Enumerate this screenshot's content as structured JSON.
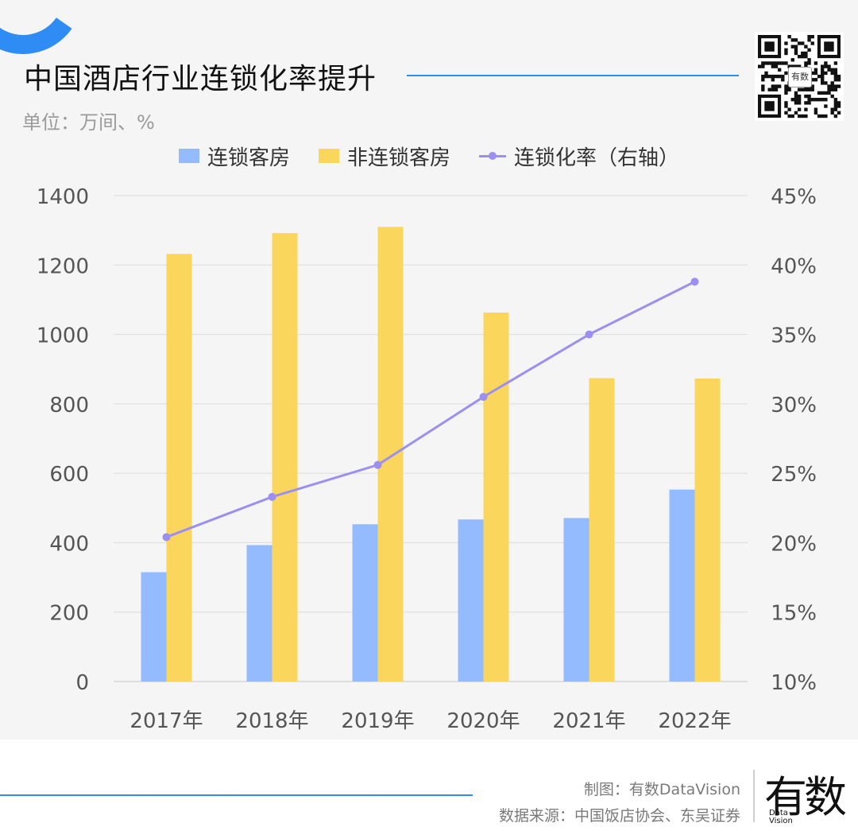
{
  "header": {
    "title": "中国酒店行业连锁化率提升",
    "unit": "单位：万间、%"
  },
  "qr": {
    "badge": "有数"
  },
  "colors": {
    "chain": "#94bbfd",
    "non_chain": "#fad65c",
    "rate": "#9b8ff0",
    "accent": "#2f8cf4"
  },
  "chart_data": {
    "type": "bar",
    "categories": [
      "2017年",
      "2018年",
      "2019年",
      "2020年",
      "2021年",
      "2022年"
    ],
    "series": [
      {
        "name": "连锁客房",
        "type": "bar",
        "axis": "left",
        "values": [
          315,
          393,
          453,
          467,
          471,
          553
        ]
      },
      {
        "name": "非连锁客房",
        "type": "bar",
        "axis": "left",
        "values": [
          1232,
          1292,
          1310,
          1063,
          874,
          873
        ]
      },
      {
        "name": "连锁化率（右轴）",
        "type": "line",
        "axis": "right",
        "values": [
          20.4,
          23.3,
          25.6,
          30.5,
          35.0,
          38.8
        ]
      }
    ],
    "left_axis": {
      "min": 0,
      "max": 1400,
      "step": 200,
      "ticks": [
        "0",
        "200",
        "400",
        "600",
        "800",
        "1000",
        "1200",
        "1400"
      ]
    },
    "right_axis": {
      "min": 10,
      "max": 45,
      "step": 5,
      "ticks": [
        "10%",
        "15%",
        "20%",
        "25%",
        "30%",
        "35%",
        "40%",
        "45%"
      ]
    },
    "grid": true,
    "legend": "top-center"
  },
  "footer": {
    "credit": "制图：有数DataVision",
    "source": "数据来源：中国饭店协会、东吴证券",
    "logo_cn": "有数",
    "logo_sub_1": "Data",
    "logo_sub_2": "Vision"
  }
}
